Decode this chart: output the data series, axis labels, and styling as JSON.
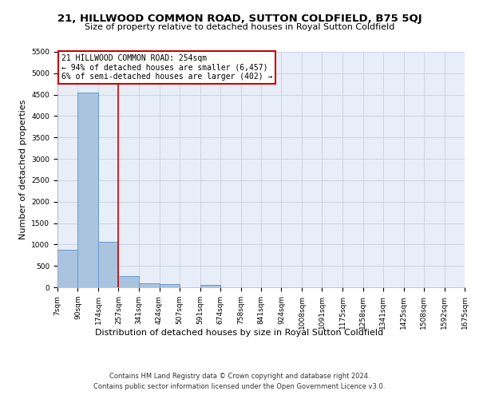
{
  "title": "21, HILLWOOD COMMON ROAD, SUTTON COLDFIELD, B75 5QJ",
  "subtitle": "Size of property relative to detached houses in Royal Sutton Coldfield",
  "xlabel": "Distribution of detached houses by size in Royal Sutton Coldfield",
  "ylabel": "Number of detached properties",
  "footnote1": "Contains HM Land Registry data © Crown copyright and database right 2024.",
  "footnote2": "Contains public sector information licensed under the Open Government Licence v3.0.",
  "annotation_line1": "21 HILLWOOD COMMON ROAD: 254sqm",
  "annotation_line2": "← 94% of detached houses are smaller (6,457)",
  "annotation_line3": "6% of semi-detached houses are larger (402) →",
  "bar_edges": [
    7,
    90,
    174,
    257,
    341,
    424,
    507,
    591,
    674,
    758,
    841,
    924,
    1008,
    1091,
    1175,
    1258,
    1341,
    1425,
    1508,
    1592,
    1675
  ],
  "bar_values": [
    870,
    4550,
    1060,
    270,
    85,
    75,
    0,
    50,
    0,
    0,
    0,
    0,
    0,
    0,
    0,
    0,
    0,
    0,
    0,
    0
  ],
  "bar_color": "#aac4e0",
  "bar_edge_color": "#6699cc",
  "property_size_sqm": 254,
  "vline_color": "#cc0000",
  "ylim": [
    0,
    5500
  ],
  "yticks": [
    0,
    500,
    1000,
    1500,
    2000,
    2500,
    3000,
    3500,
    4000,
    4500,
    5000,
    5500
  ],
  "background_color": "#e8eef8",
  "annotation_box_color": "#ffffff",
  "annotation_box_edge": "#cc0000",
  "title_fontsize": 9.5,
  "subtitle_fontsize": 8,
  "ylabel_fontsize": 8,
  "xlabel_fontsize": 8,
  "tick_fontsize": 6.5,
  "footnote_fontsize": 6,
  "annot_fontsize": 7
}
